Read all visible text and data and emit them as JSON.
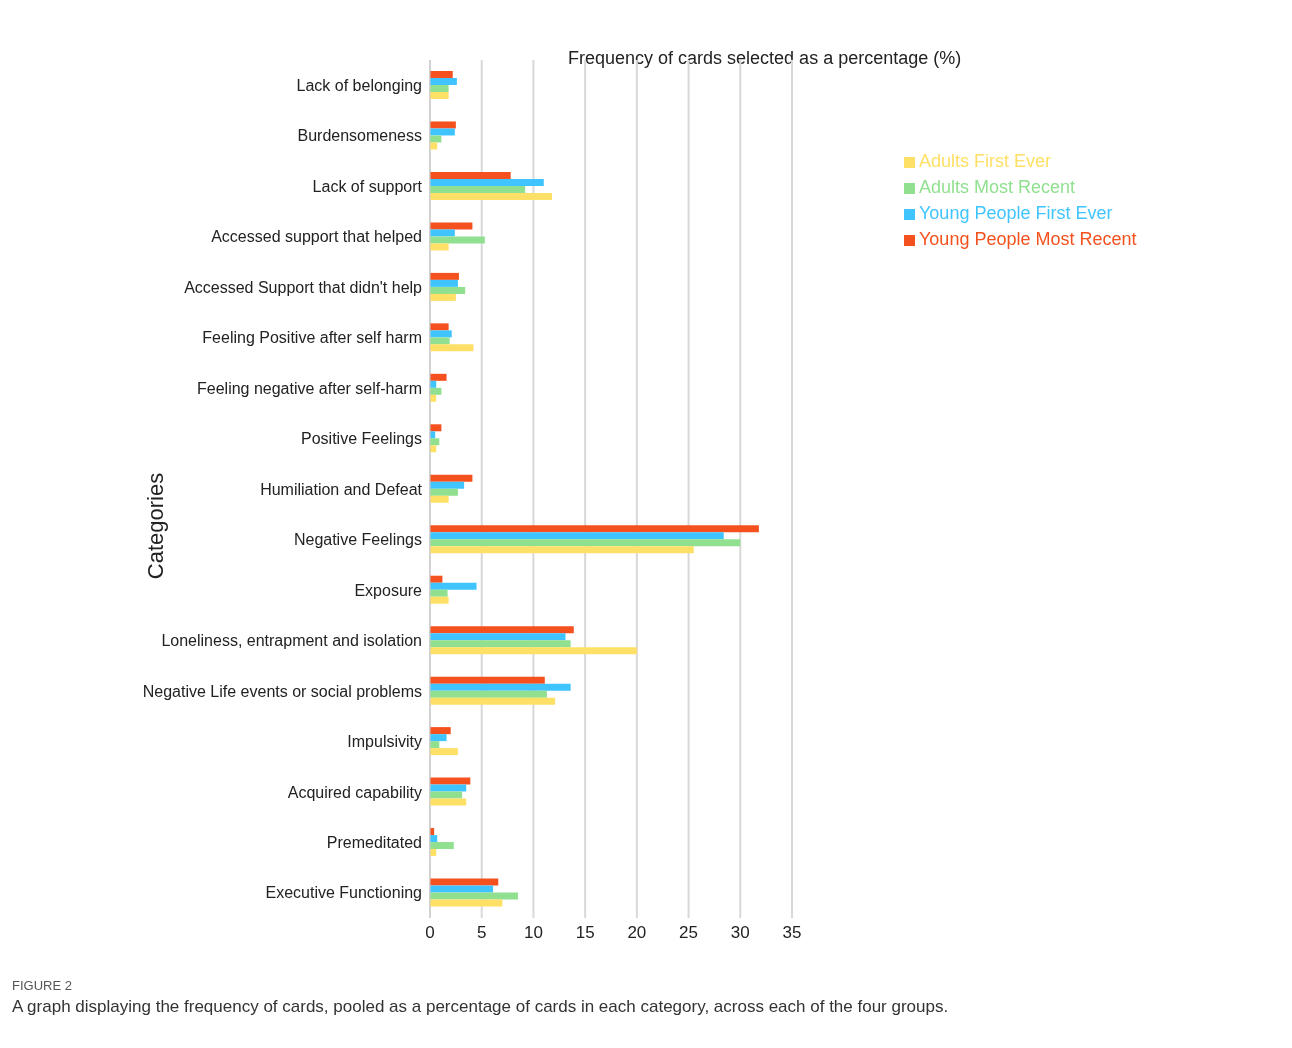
{
  "chart_data": {
    "type": "bar",
    "orientation": "horizontal",
    "xlabel": "Frequency of cards selected as a percentage  (%)",
    "ylabel": "Categories",
    "categories": [
      "Lack of belonging",
      "Burdensomeness",
      "Lack of support",
      "Accessed support that helped",
      "Accessed Support that didn't help",
      "Feeling Positive after self harm",
      "Feeling negative after self-harm",
      "Positive Feelings",
      "Humiliation and Defeat",
      "Negative Feelings",
      "Exposure",
      "Loneliness, entrapment and isolation",
      "Negative Life events or social problems",
      "Impulsivity",
      "Acquired capability",
      "Premeditated",
      "Executive Functioning"
    ],
    "series": [
      {
        "name": "Young People Most Recent",
        "color": "#f4511e",
        "values": [
          2.2,
          2.5,
          7.8,
          4.1,
          2.8,
          1.8,
          1.6,
          1.1,
          4.1,
          31.8,
          1.2,
          13.9,
          11.1,
          2.0,
          3.9,
          0.4,
          6.6
        ]
      },
      {
        "name": "Young People First Ever",
        "color": "#40c4ff",
        "values": [
          2.6,
          2.4,
          11.0,
          2.4,
          2.7,
          2.1,
          0.6,
          0.5,
          3.3,
          28.4,
          4.5,
          13.1,
          13.6,
          1.6,
          3.5,
          0.7,
          6.1
        ]
      },
      {
        "name": "Adults Most Recent",
        "color": "#90e090",
        "values": [
          1.8,
          1.1,
          9.2,
          5.3,
          3.4,
          1.9,
          1.1,
          0.9,
          2.7,
          30.0,
          1.7,
          13.6,
          11.3,
          0.9,
          3.1,
          2.3,
          8.5
        ]
      },
      {
        "name": "Adults First Ever",
        "color": "#ffe066",
        "values": [
          1.8,
          0.7,
          11.8,
          1.8,
          2.5,
          4.2,
          0.6,
          0.6,
          1.8,
          25.5,
          1.8,
          20.0,
          12.1,
          2.7,
          3.5,
          0.6,
          7.0
        ]
      }
    ],
    "xlim": [
      0,
      35
    ],
    "xticks": [
      0,
      5,
      10,
      15,
      20,
      25,
      30,
      35
    ],
    "grid": "x",
    "legend": "top right",
    "annotations": [
      "FIGURE 2",
      "A graph displaying the frequency of cards, pooled as a percentage of cards in each category, across each of the four groups."
    ]
  }
}
